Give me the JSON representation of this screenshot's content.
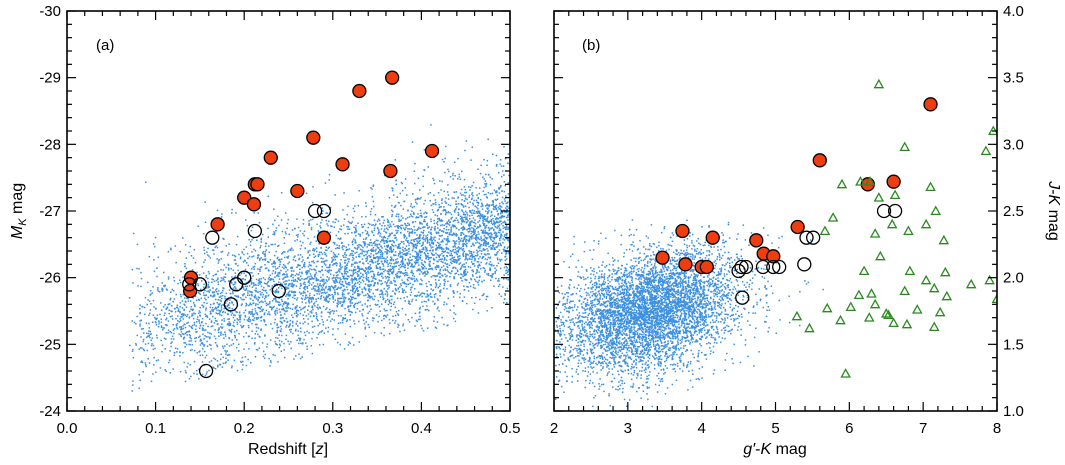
{
  "chart_data": [
    {
      "type": "scatter",
      "panel_label": "(a)",
      "xlabel": "Redshift [z]",
      "ylabel": "M_K mag",
      "xlim": [
        0.0,
        0.5
      ],
      "ylim": [
        -24,
        -30
      ],
      "x_ticks": [
        0.0,
        0.1,
        0.2,
        0.3,
        0.4,
        0.5
      ],
      "x_tick_labels": [
        "0.0",
        "0.1",
        "0.2",
        "0.3",
        "0.4",
        "0.5"
      ],
      "y_ticks": [
        -24,
        -25,
        -26,
        -27,
        -28,
        -29,
        -30
      ],
      "y_tick_labels": [
        "-24",
        "-25",
        "-26",
        "-27",
        "-28",
        "-29",
        "-30"
      ],
      "background_cloud": {
        "name": "comparison sample",
        "color": "#3a8fe0",
        "count": 5200,
        "description_free": true,
        "x_range": [
          0.07,
          0.5
        ],
        "trend": "M_K brightens from about -25.5 at z=0.12 to about -26.7 at z=0.5, spread about 0.5 mag"
      },
      "series": [
        {
          "name": "filled red circles",
          "marker": "filled-circle",
          "color": "#ee3d10",
          "points": [
            [
              0.139,
              -25.8
            ],
            [
              0.14,
              -26.0
            ],
            [
              0.17,
              -26.8
            ],
            [
              0.2,
              -27.2
            ],
            [
              0.211,
              -27.1
            ],
            [
              0.212,
              -27.4
            ],
            [
              0.215,
              -27.4
            ],
            [
              0.23,
              -27.8
            ],
            [
              0.26,
              -27.3
            ],
            [
              0.278,
              -28.1
            ],
            [
              0.29,
              -26.6
            ],
            [
              0.311,
              -27.7
            ],
            [
              0.33,
              -28.8
            ],
            [
              0.365,
              -27.6
            ],
            [
              0.367,
              -29.0
            ],
            [
              0.412,
              -27.9
            ]
          ]
        },
        {
          "name": "open circles",
          "marker": "open-circle",
          "color": "#000000",
          "points": [
            [
              0.138,
              -25.9
            ],
            [
              0.15,
              -25.9
            ],
            [
              0.164,
              -26.6
            ],
            [
              0.185,
              -25.6
            ],
            [
              0.191,
              -25.9
            ],
            [
              0.2,
              -26.0
            ],
            [
              0.212,
              -26.7
            ],
            [
              0.239,
              -25.8
            ],
            [
              0.28,
              -27.0
            ],
            [
              0.29,
              -27.0
            ],
            [
              0.157,
              -24.6
            ]
          ]
        }
      ]
    },
    {
      "type": "scatter",
      "panel_label": "(b)",
      "xlabel": "g′-K mag",
      "ylabel": "J-K mag",
      "xlim": [
        2,
        8
      ],
      "ylim": [
        1.0,
        4.0
      ],
      "x_ticks": [
        2,
        3,
        4,
        5,
        6,
        7,
        8
      ],
      "x_tick_labels": [
        "2",
        "3",
        "4",
        "5",
        "6",
        "7",
        "8"
      ],
      "y_ticks": [
        1.0,
        1.5,
        2.0,
        2.5,
        3.0,
        3.5,
        4.0
      ],
      "y_tick_labels": [
        "1.0",
        "1.5",
        "2.0",
        "2.5",
        "3.0",
        "3.5",
        "4.0"
      ],
      "background_cloud": {
        "name": "comparison sample",
        "color": "#3a8fe0",
        "count": 5200,
        "center": [
          3.3,
          1.75
        ],
        "x_range": [
          2.0,
          5.6
        ],
        "y_range": [
          1.0,
          2.4
        ]
      },
      "series": [
        {
          "name": "filled red circles",
          "marker": "filled-circle",
          "color": "#ee3d10",
          "points": [
            [
              3.47,
              2.15
            ],
            [
              3.74,
              2.35
            ],
            [
              3.78,
              2.1
            ],
            [
              4.0,
              2.08
            ],
            [
              4.07,
              2.08
            ],
            [
              4.15,
              2.3
            ],
            [
              4.74,
              2.28
            ],
            [
              4.84,
              2.18
            ],
            [
              4.97,
              2.16
            ],
            [
              5.3,
              2.38
            ],
            [
              5.6,
              2.88
            ],
            [
              6.25,
              2.7
            ],
            [
              6.6,
              2.72
            ],
            [
              7.1,
              3.3
            ]
          ]
        },
        {
          "name": "open circles",
          "marker": "open-circle",
          "color": "#000000",
          "points": [
            [
              4.5,
              2.05
            ],
            [
              4.54,
              2.08
            ],
            [
              4.55,
              1.85
            ],
            [
              4.6,
              2.08
            ],
            [
              4.83,
              2.08
            ],
            [
              4.97,
              2.08
            ],
            [
              5.05,
              2.08
            ],
            [
              5.39,
              2.1
            ],
            [
              5.42,
              2.3
            ],
            [
              5.51,
              2.3
            ],
            [
              6.47,
              2.5
            ],
            [
              6.62,
              2.5
            ]
          ]
        },
        {
          "name": "green triangles",
          "marker": "open-triangle",
          "color": "#2a8a1f",
          "points": [
            [
              6.4,
              3.45
            ],
            [
              7.95,
              3.1
            ],
            [
              7.85,
              2.95
            ],
            [
              6.75,
              2.98
            ],
            [
              6.28,
              2.72
            ],
            [
              6.4,
              2.6
            ],
            [
              7.1,
              2.68
            ],
            [
              6.15,
              2.72
            ],
            [
              5.9,
              2.7
            ],
            [
              6.62,
              2.62
            ],
            [
              7.17,
              2.5
            ],
            [
              5.78,
              2.45
            ],
            [
              6.58,
              2.4
            ],
            [
              7.04,
              2.4
            ],
            [
              6.8,
              2.35
            ],
            [
              5.67,
              2.35
            ],
            [
              6.35,
              2.33
            ],
            [
              7.28,
              2.28
            ],
            [
              6.42,
              2.16
            ],
            [
              6.2,
              2.05
            ],
            [
              6.82,
              2.05
            ],
            [
              7.3,
              2.04
            ],
            [
              7.9,
              1.98
            ],
            [
              7.04,
              1.98
            ],
            [
              7.65,
              1.95
            ],
            [
              7.15,
              1.92
            ],
            [
              6.13,
              1.87
            ],
            [
              6.3,
              1.88
            ],
            [
              6.75,
              1.9
            ],
            [
              7.32,
              1.86
            ],
            [
              8.0,
              1.84
            ],
            [
              6.35,
              1.8
            ],
            [
              6.02,
              1.78
            ],
            [
              5.7,
              1.77
            ],
            [
              6.5,
              1.73
            ],
            [
              6.92,
              1.76
            ],
            [
              6.53,
              1.72
            ],
            [
              7.23,
              1.74
            ],
            [
              5.29,
              1.71
            ],
            [
              6.27,
              1.7
            ],
            [
              5.88,
              1.68
            ],
            [
              6.6,
              1.66
            ],
            [
              6.78,
              1.65
            ],
            [
              7.15,
              1.63
            ],
            [
              5.46,
              1.62
            ],
            [
              5.95,
              1.28
            ]
          ]
        }
      ]
    }
  ]
}
